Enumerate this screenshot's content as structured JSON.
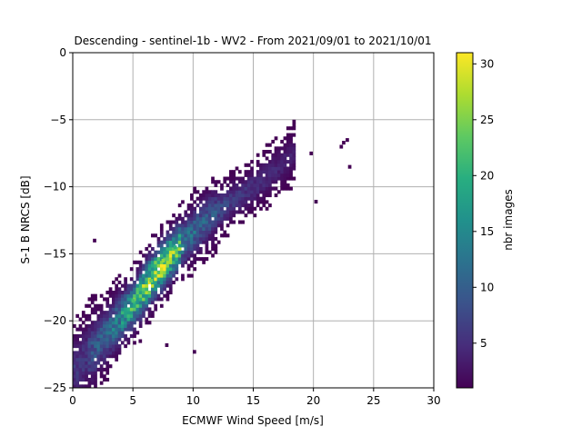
{
  "chart_data": {
    "type": "heatmap",
    "title": "Descending - sentinel-1b - WV2 - From 2021/09/01 to 2021/10/01",
    "xlabel": "ECMWF Wind Speed [m/s]",
    "ylabel": "S-1 B NRCS [dB]",
    "xlim": [
      0,
      30
    ],
    "ylim": [
      -25,
      0
    ],
    "x_ticks": [
      0,
      5,
      10,
      15,
      20,
      25,
      30
    ],
    "y_ticks": [
      0,
      -5,
      -10,
      -15,
      -20,
      -25
    ],
    "grid": true,
    "colormap": "viridis",
    "bin_size": {
      "x": 0.25,
      "y": 0.25
    },
    "colorbar": {
      "label": "nbr images",
      "range": [
        1,
        31
      ],
      "ticks": [
        5,
        10,
        15,
        20,
        25,
        30
      ]
    },
    "ridge": [
      {
        "x": 1,
        "y": -22.8
      },
      {
        "x": 3,
        "y": -20.8
      },
      {
        "x": 5,
        "y": -18.8
      },
      {
        "x": 7,
        "y": -16.3
      },
      {
        "x": 9,
        "y": -14.3
      },
      {
        "x": 11,
        "y": -12.5
      },
      {
        "x": 13,
        "y": -11.2
      },
      {
        "x": 15,
        "y": -10.0
      },
      {
        "x": 17,
        "y": -8.6
      },
      {
        "x": 18,
        "y": -7.8
      }
    ],
    "peak_density": [
      {
        "x": 5.0,
        "y": -18.5,
        "count": 22
      },
      {
        "x": 6.5,
        "y": -17.0,
        "count": 24
      },
      {
        "x": 7.5,
        "y": -15.5,
        "count": 26
      },
      {
        "x": 8.5,
        "y": -14.5,
        "count": 20
      }
    ],
    "outliers": [
      {
        "x": 22.5,
        "y": -6.7
      },
      {
        "x": 22.8,
        "y": -6.5
      },
      {
        "x": 23.0,
        "y": -8.5
      },
      {
        "x": 22.3,
        "y": -7.0
      },
      {
        "x": 20.2,
        "y": -11.1
      },
      {
        "x": 19.8,
        "y": -7.5
      },
      {
        "x": 10.1,
        "y": -22.3
      },
      {
        "x": 7.8,
        "y": -21.8
      },
      {
        "x": 5.6,
        "y": -21.5
      },
      {
        "x": 1.8,
        "y": -14.0
      }
    ]
  }
}
